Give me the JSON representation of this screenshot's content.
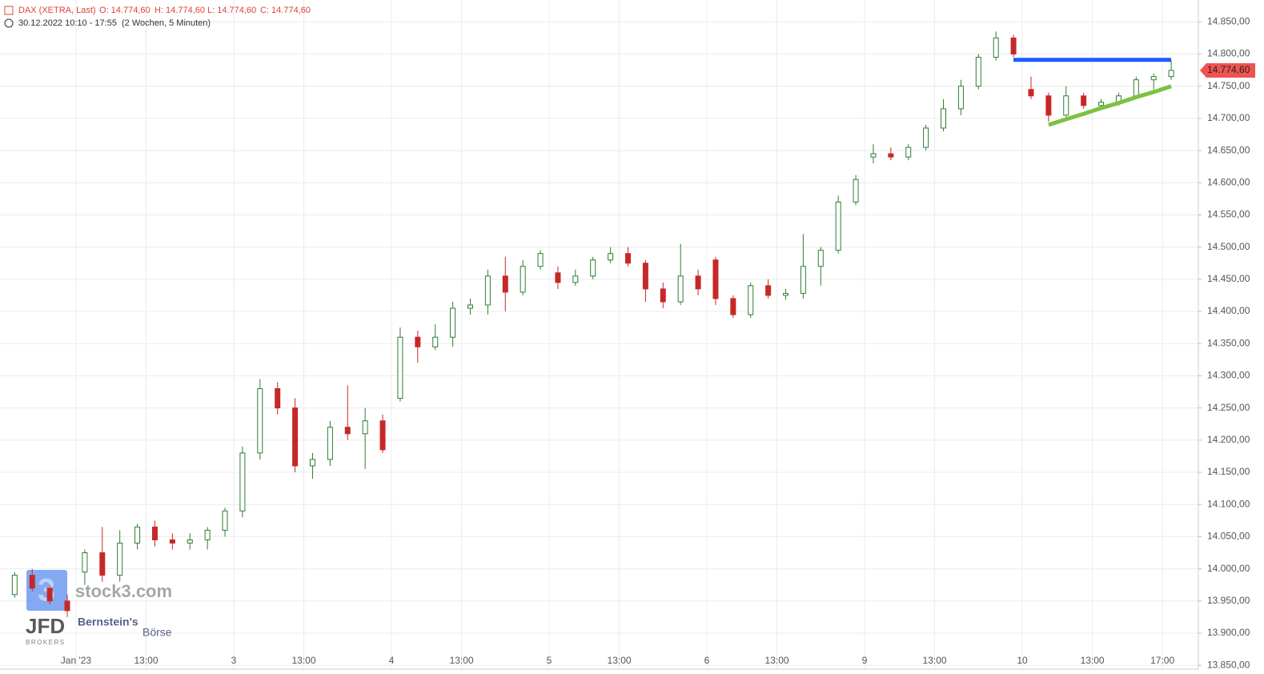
{
  "header": {
    "instrument": "DAX (XETRA, Last)",
    "open": "O: 14.774,60",
    "high": "H: 14.774,60",
    "low": "L: 14.774,60",
    "close": "C: 14.774,60",
    "range": "30.12.2022 10:10 - 17:55",
    "period": "(2 Wochen, 5 Minuten)"
  },
  "watermarks": {
    "logo_digit": "3",
    "site": "stock3.com",
    "broker": "JFD",
    "broker_sub": "BROKERS",
    "partner": "Bernstein's",
    "partner_sub": "Börse"
  },
  "chart_data": {
    "type": "candlestick",
    "categories": [
      null,
      null,
      null,
      null,
      "Jan '23",
      null,
      null,
      null,
      "13:00",
      null,
      null,
      null,
      null,
      "3",
      null,
      null,
      null,
      "13:00",
      null,
      null,
      null,
      null,
      "4",
      null,
      null,
      null,
      "13:00",
      null,
      null,
      null,
      null,
      "5",
      null,
      null,
      null,
      "13:00",
      null,
      null,
      null,
      null,
      "6",
      null,
      null,
      null,
      "13:00",
      null,
      null,
      null,
      null,
      "9",
      null,
      null,
      null,
      "13:00",
      null,
      null,
      null,
      null,
      "10",
      null,
      null,
      null,
      "13:00",
      null,
      null,
      null,
      "17:00"
    ],
    "open": [
      13960,
      13990,
      13970,
      13950,
      13995,
      14025,
      13990,
      14040,
      14065,
      14045,
      14040,
      14045,
      14060,
      14090,
      14180,
      14280,
      14250,
      14160,
      14170,
      14220,
      14210,
      14230,
      14265,
      14360,
      14345,
      14360,
      14405,
      14410,
      14455,
      14430,
      14470,
      14460,
      14445,
      14455,
      14480,
      14490,
      14475,
      14435,
      14415,
      14455,
      14480,
      14420,
      14395,
      14440,
      14425,
      14428,
      14470,
      14495,
      14570,
      14640,
      14645,
      14640,
      14655,
      14685,
      14715,
      14750,
      14795,
      14825,
      14745,
      14735,
      14705,
      14735,
      14720,
      14725,
      14735,
      14760,
      14765
    ],
    "high": [
      13995,
      14000,
      13975,
      13960,
      14030,
      14065,
      14060,
      14070,
      14075,
      14055,
      14055,
      14065,
      14095,
      14190,
      14295,
      14290,
      14265,
      14180,
      14230,
      14285,
      14250,
      14240,
      14375,
      14370,
      14380,
      14415,
      14420,
      14465,
      14485,
      14480,
      14495,
      14470,
      14465,
      14485,
      14500,
      14500,
      14480,
      14445,
      14505,
      14465,
      14485,
      14425,
      14445,
      14450,
      14435,
      14520,
      14500,
      14580,
      14612,
      14660,
      14655,
      14660,
      14690,
      14730,
      14760,
      14800,
      14835,
      14830,
      14765,
      14740,
      14750,
      14740,
      14730,
      14740,
      14765,
      14770,
      14790
    ],
    "low": [
      13955,
      13965,
      13945,
      13925,
      13975,
      13980,
      13980,
      14030,
      14035,
      14030,
      14030,
      14030,
      14050,
      14080,
      14170,
      14240,
      14150,
      14140,
      14160,
      14200,
      14155,
      14180,
      14260,
      14320,
      14340,
      14345,
      14395,
      14395,
      14400,
      14425,
      14465,
      14435,
      14440,
      14450,
      14475,
      14470,
      14415,
      14405,
      14410,
      14425,
      14410,
      14390,
      14390,
      14420,
      14418,
      14420,
      14440,
      14490,
      14565,
      14630,
      14635,
      14635,
      14650,
      14680,
      14705,
      14745,
      14790,
      14795,
      14730,
      14695,
      14700,
      14715,
      14715,
      14720,
      14730,
      14745,
      14760
    ],
    "close": [
      13990,
      13970,
      13950,
      13935,
      14025,
      13990,
      14040,
      14065,
      14045,
      14040,
      14045,
      14060,
      14090,
      14180,
      14280,
      14250,
      14160,
      14170,
      14220,
      14210,
      14230,
      14185,
      14360,
      14345,
      14360,
      14405,
      14410,
      14455,
      14430,
      14470,
      14490,
      14445,
      14455,
      14480,
      14490,
      14475,
      14435,
      14415,
      14455,
      14435,
      14420,
      14395,
      14440,
      14425,
      14428,
      14470,
      14495,
      14570,
      14605,
      14645,
      14640,
      14655,
      14685,
      14715,
      14750,
      14795,
      14825,
      14800,
      14735,
      14705,
      14735,
      14720,
      14725,
      14735,
      14760,
      14765,
      14774.6
    ],
    "up_color": "#2e7d32",
    "down_color": "#c62828",
    "series": [
      {
        "color": "#1a5cff",
        "values": [
          null,
          null,
          null,
          null,
          null,
          null,
          null,
          null,
          null,
          null,
          null,
          null,
          null,
          null,
          null,
          null,
          null,
          null,
          null,
          null,
          null,
          null,
          null,
          null,
          null,
          null,
          null,
          null,
          null,
          null,
          null,
          null,
          null,
          null,
          null,
          null,
          null,
          null,
          null,
          null,
          null,
          null,
          null,
          null,
          null,
          null,
          null,
          null,
          null,
          null,
          null,
          null,
          null,
          null,
          null,
          null,
          null,
          14791,
          14791,
          14791,
          14791,
          14791,
          14791,
          14791,
          14791,
          14791,
          14791
        ]
      },
      {
        "color": "#7cc142",
        "values": [
          null,
          null,
          null,
          null,
          null,
          null,
          null,
          null,
          null,
          null,
          null,
          null,
          null,
          null,
          null,
          null,
          null,
          null,
          null,
          null,
          null,
          null,
          null,
          null,
          null,
          null,
          null,
          null,
          null,
          null,
          null,
          null,
          null,
          null,
          null,
          null,
          null,
          null,
          null,
          null,
          null,
          null,
          null,
          null,
          null,
          null,
          null,
          null,
          null,
          null,
          null,
          null,
          null,
          null,
          null,
          null,
          null,
          null,
          null,
          14690,
          14698.6,
          14707,
          14716,
          14724,
          14733,
          14741,
          14750
        ]
      }
    ],
    "last_price": {
      "value": 14774.6,
      "label": "14.774,60"
    },
    "ylim": [
      13844,
      14884
    ],
    "yticks": [
      {
        "value": 13850,
        "label": "13.850,00"
      },
      {
        "value": 13900,
        "label": "13.900,00"
      },
      {
        "value": 13950,
        "label": "13.950,00"
      },
      {
        "value": 14000,
        "label": "14.000,00"
      },
      {
        "value": 14050,
        "label": "14.050,00"
      },
      {
        "value": 14100,
        "label": "14.100,00"
      },
      {
        "value": 14150,
        "label": "14.150,00"
      },
      {
        "value": 14200,
        "label": "14.200,00"
      },
      {
        "value": 14250,
        "label": "14.250,00"
      },
      {
        "value": 14300,
        "label": "14.300,00"
      },
      {
        "value": 14350,
        "label": "14.350,00"
      },
      {
        "value": 14400,
        "label": "14.400,00"
      },
      {
        "value": 14450,
        "label": "14.450,00"
      },
      {
        "value": 14500,
        "label": "14.500,00"
      },
      {
        "value": 14550,
        "label": "14.550,00"
      },
      {
        "value": 14600,
        "label": "14.600,00"
      },
      {
        "value": 14650,
        "label": "14.650,00"
      },
      {
        "value": 14700,
        "label": "14.700,00"
      },
      {
        "value": 14750,
        "label": "14.750,00"
      },
      {
        "value": 14800,
        "label": "14.800,00"
      },
      {
        "value": 14850,
        "label": "14.850,00"
      }
    ],
    "grid": true
  }
}
